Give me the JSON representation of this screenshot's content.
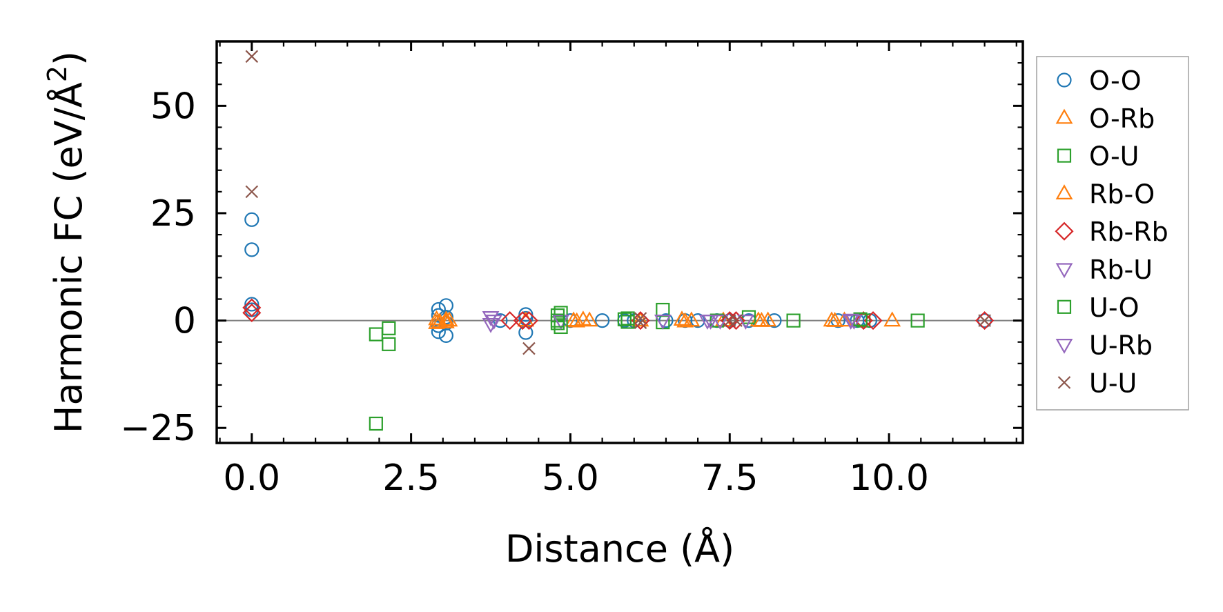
{
  "chart_data": {
    "type": "scatter",
    "title": "",
    "xlabel": "Distance (Å)",
    "ylabel_main": "Harmonic FC (eV/Å",
    "ylabel_sup": "2",
    "ylabel_end": ")",
    "xlim": [
      -0.55,
      12.1
    ],
    "ylim": [
      -28.5,
      65
    ],
    "xticks": [
      0,
      2.5,
      5,
      7.5,
      10
    ],
    "xtick_labels": [
      "0.0",
      "2.5",
      "5.0",
      "7.5",
      "10.0"
    ],
    "yticks": [
      -25,
      0,
      25,
      50
    ],
    "ytick_labels": [
      "−25",
      "0",
      "25",
      "50"
    ],
    "zero_line": 0,
    "grid": false,
    "legend_position": "outside-right",
    "series": [
      {
        "name": "O-O",
        "marker": "circle",
        "color": "#1f77b4",
        "points": [
          [
            0,
            23.5
          ],
          [
            0,
            16.5
          ],
          [
            0,
            3.8
          ],
          [
            0,
            2.5
          ],
          [
            2.93,
            2.6
          ],
          [
            2.93,
            -2.6
          ],
          [
            2.93,
            1.2
          ],
          [
            2.93,
            -1.2
          ],
          [
            3.05,
            3.5
          ],
          [
            3.05,
            -3.5
          ],
          [
            3.05,
            0.8
          ],
          [
            3.05,
            -0.6
          ],
          [
            3.9,
            0
          ],
          [
            4.3,
            1.4
          ],
          [
            4.3,
            -2.8
          ],
          [
            4.3,
            0.5
          ],
          [
            5.0,
            0
          ],
          [
            5.5,
            0
          ],
          [
            5.85,
            0
          ],
          [
            6.0,
            0
          ],
          [
            6.5,
            0
          ],
          [
            6.8,
            0
          ],
          [
            7.0,
            0
          ],
          [
            7.3,
            0
          ],
          [
            7.5,
            0
          ],
          [
            7.8,
            0
          ],
          [
            8.2,
            0
          ],
          [
            9.2,
            0
          ],
          [
            9.5,
            0
          ],
          [
            9.7,
            0
          ],
          [
            11.5,
            0
          ]
        ]
      },
      {
        "name": "O-Rb",
        "marker": "triangle-up",
        "color": "#ff7f0e",
        "points": [
          [
            2.9,
            0.3
          ],
          [
            2.9,
            -0.6
          ],
          [
            3.05,
            0.2
          ],
          [
            3.05,
            -0.4
          ],
          [
            4.3,
            0
          ],
          [
            5.05,
            0
          ],
          [
            5.2,
            0.2
          ],
          [
            5.3,
            0
          ],
          [
            6.1,
            0
          ],
          [
            6.75,
            0.2
          ],
          [
            6.9,
            0
          ],
          [
            7.4,
            0
          ],
          [
            7.95,
            0
          ],
          [
            8.1,
            0
          ],
          [
            9.1,
            0
          ],
          [
            9.3,
            0
          ],
          [
            10.05,
            0
          ]
        ]
      },
      {
        "name": "O-U",
        "marker": "square",
        "color": "#2ca02c",
        "points": [
          [
            1.95,
            -24
          ],
          [
            1.95,
            -3.2
          ],
          [
            2.15,
            -1.8
          ],
          [
            2.15,
            -5.5
          ],
          [
            4.8,
            1.2
          ],
          [
            4.8,
            -0.6
          ],
          [
            4.85,
            1.8
          ],
          [
            4.85,
            -1.5
          ],
          [
            5.85,
            0.3
          ],
          [
            5.9,
            -0.3
          ],
          [
            6.45,
            2.5
          ],
          [
            6.45,
            -0.4
          ],
          [
            7.3,
            0
          ],
          [
            7.8,
            0.8
          ],
          [
            8.5,
            0
          ],
          [
            9.6,
            0
          ],
          [
            10.45,
            0
          ]
        ]
      },
      {
        "name": "Rb-O",
        "marker": "triangle-up",
        "color": "#ff7f0e",
        "points": [
          [
            2.95,
            -0.3
          ],
          [
            3.1,
            0
          ],
          [
            5.1,
            -0.2
          ],
          [
            6.8,
            -0.2
          ],
          [
            8.0,
            -0.1
          ],
          [
            9.15,
            -0.1
          ]
        ]
      },
      {
        "name": "Rb-Rb",
        "marker": "diamond",
        "color": "#d62728",
        "points": [
          [
            0,
            3.0
          ],
          [
            0,
            1.8
          ],
          [
            4.05,
            0
          ],
          [
            4.25,
            0
          ],
          [
            4.35,
            0
          ],
          [
            6.1,
            0
          ],
          [
            7.5,
            0
          ],
          [
            7.6,
            0
          ],
          [
            9.6,
            0
          ],
          [
            9.75,
            0
          ],
          [
            11.5,
            0
          ]
        ]
      },
      {
        "name": "Rb-U",
        "marker": "triangle-down",
        "color": "#9467bd",
        "points": [
          [
            3.75,
            0.8
          ],
          [
            3.75,
            -0.8
          ],
          [
            4.85,
            0
          ],
          [
            6.45,
            0
          ],
          [
            7.15,
            0
          ],
          [
            7.35,
            0
          ],
          [
            7.75,
            0
          ],
          [
            9.4,
            0
          ],
          [
            9.45,
            0
          ]
        ]
      },
      {
        "name": "U-O",
        "marker": "square",
        "color": "#2ca02c",
        "points": [
          [
            4.8,
            0
          ],
          [
            5.9,
            0.5
          ],
          [
            9.55,
            0.3
          ]
        ]
      },
      {
        "name": "U-Rb",
        "marker": "triangle-down",
        "color": "#9467bd",
        "points": [
          [
            3.8,
            0
          ],
          [
            7.2,
            0
          ],
          [
            9.4,
            0.2
          ]
        ]
      },
      {
        "name": "U-U",
        "marker": "x",
        "color": "#8c564b",
        "points": [
          [
            0,
            61.5
          ],
          [
            0,
            30
          ],
          [
            4.35,
            -6.5
          ],
          [
            6.1,
            0.5
          ],
          [
            6.1,
            -0.5
          ],
          [
            7.5,
            0
          ],
          [
            7.6,
            0
          ],
          [
            11.5,
            0
          ]
        ]
      }
    ],
    "legend": [
      {
        "label": "O-O",
        "marker": "circle",
        "color": "#1f77b4"
      },
      {
        "label": "O-Rb",
        "marker": "triangle-up",
        "color": "#ff7f0e"
      },
      {
        "label": "O-U",
        "marker": "square",
        "color": "#2ca02c"
      },
      {
        "label": "Rb-O",
        "marker": "triangle-up",
        "color": "#ff7f0e"
      },
      {
        "label": "Rb-Rb",
        "marker": "diamond",
        "color": "#d62728"
      },
      {
        "label": "Rb-U",
        "marker": "triangle-down",
        "color": "#9467bd"
      },
      {
        "label": "U-O",
        "marker": "square",
        "color": "#2ca02c"
      },
      {
        "label": "U-Rb",
        "marker": "triangle-down",
        "color": "#9467bd"
      },
      {
        "label": "U-U",
        "marker": "x",
        "color": "#8c564b"
      }
    ]
  }
}
